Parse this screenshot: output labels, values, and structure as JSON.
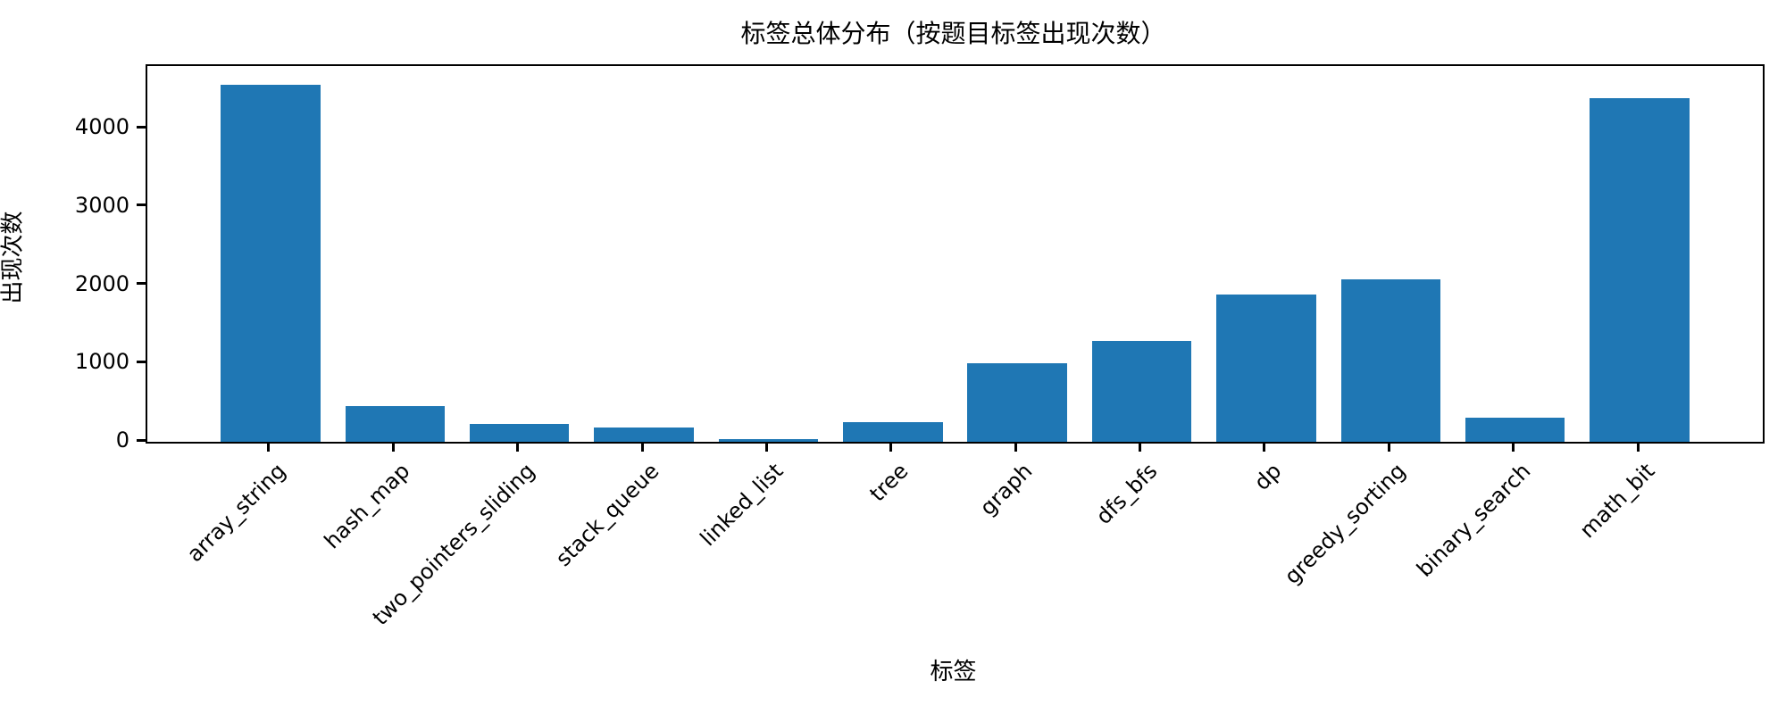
{
  "chart_data": {
    "type": "bar",
    "title": "标签总体分布（按题目标签出现次数）",
    "xlabel": "标签",
    "ylabel": "出现次数",
    "categories": [
      "array_string",
      "hash_map",
      "two_pointers_sliding",
      "stack_queue",
      "linked_list",
      "tree",
      "graph",
      "dfs_bfs",
      "dp",
      "greedy_sorting",
      "binary_search",
      "math_bit"
    ],
    "values": [
      4560,
      455,
      230,
      185,
      35,
      250,
      1000,
      1290,
      1880,
      2070,
      310,
      4390
    ],
    "yticks": [
      0,
      1000,
      2000,
      3000,
      4000
    ],
    "ylim": [
      0,
      4800
    ],
    "bar_color": "#1f77b4",
    "grid": "off",
    "legend": "none",
    "x_tick_rotation_deg": 45
  }
}
